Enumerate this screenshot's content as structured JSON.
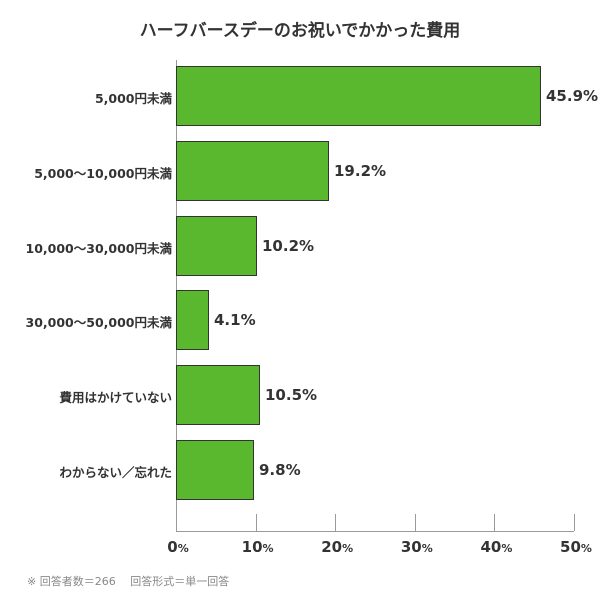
{
  "title": "ハーフバースデーのお祝いでかかった費用",
  "footnote": "※ 回答者数＝266　 回答形式＝単一回答",
  "colors": {
    "bar": "#5ab82e",
    "bar_border": "#333333",
    "axis": "#9a9a9a",
    "text": "#333333",
    "footnote": "#888888"
  },
  "x_axis": {
    "ticks": [
      {
        "num": "0",
        "unit": "%"
      },
      {
        "num": "10",
        "unit": "%"
      },
      {
        "num": "20",
        "unit": "%"
      },
      {
        "num": "30",
        "unit": "%"
      },
      {
        "num": "40",
        "unit": "%"
      },
      {
        "num": "50",
        "unit": "%"
      }
    ]
  },
  "bars": [
    {
      "label": "5,000円未満",
      "value_label": "45.9%"
    },
    {
      "label": "5,000〜10,000円未満",
      "value_label": "19.2%"
    },
    {
      "label": "10,000〜30,000円未満",
      "value_label": "10.2%"
    },
    {
      "label": "30,000〜50,000円未満",
      "value_label": "4.1%"
    },
    {
      "label": "費用はかけていない",
      "value_label": "10.5%"
    },
    {
      "label": "わからない／忘れた",
      "value_label": "9.8%"
    }
  ],
  "chart_data": {
    "type": "bar",
    "orientation": "horizontal",
    "title": "ハーフバースデーのお祝いでかかった費用",
    "categories": [
      "5,000円未満",
      "5,000〜10,000円未満",
      "10,000〜30,000円未満",
      "30,000〜50,000円未満",
      "費用はかけていない",
      "わからない／忘れた"
    ],
    "values": [
      45.9,
      19.2,
      10.2,
      4.1,
      10.5,
      9.8
    ],
    "xlabel": "",
    "ylabel": "",
    "xlim": [
      0,
      50
    ],
    "x_ticks": [
      "0%",
      "10%",
      "20%",
      "30%",
      "40%",
      "50%"
    ],
    "grid": false,
    "legend": null,
    "annotations": [
      "※ 回答者数＝266　回答形式＝単一回答"
    ]
  }
}
